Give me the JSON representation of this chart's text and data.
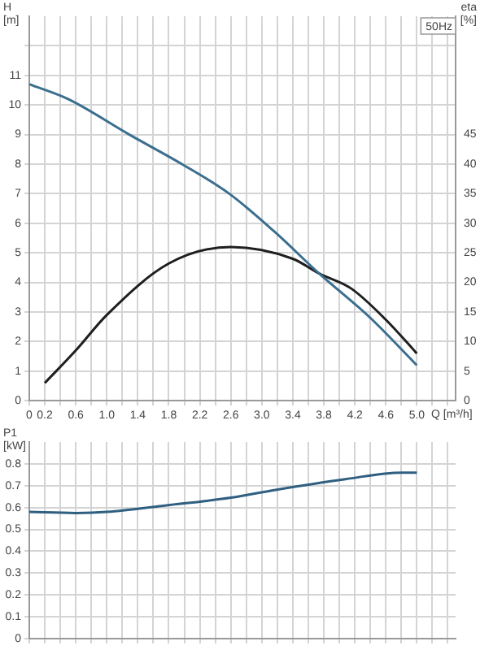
{
  "chart_data": [
    {
      "type": "line",
      "xlabel": "Q [m³/h]",
      "ylabel": "H [m]",
      "y2label": "eta [%]",
      "annotations": [
        "50Hz"
      ],
      "grid": true,
      "marker": "none",
      "xlim": [
        0,
        5.5
      ],
      "ylim": [
        0,
        13
      ],
      "y2lim": [
        0,
        65
      ],
      "xticks": [
        0,
        0.2,
        {
          "value": 0.4,
          "label": null
        },
        0.6,
        {
          "value": 0.8,
          "label": null
        },
        {
          "value": 1,
          "label": "1.0"
        },
        {
          "value": 1.2,
          "label": null
        },
        1.4,
        {
          "value": 1.6,
          "label": null
        },
        1.8,
        {
          "value": 2,
          "label": null
        },
        2.2,
        {
          "value": 2.4,
          "label": null
        },
        2.6,
        {
          "value": 2.8,
          "label": null
        },
        {
          "value": 3,
          "label": "3.0"
        },
        {
          "value": 3.2,
          "label": null
        },
        3.4,
        {
          "value": 3.6,
          "label": null
        },
        3.8,
        {
          "value": 4,
          "label": null
        },
        4.2,
        {
          "value": 4.4,
          "label": null
        },
        4.6,
        {
          "value": 4.8,
          "label": null
        },
        {
          "value": 5,
          "label": "5.0"
        },
        {
          "value": 5.2,
          "label": null
        },
        {
          "value": 5.4,
          "label": null
        }
      ],
      "yticks": [
        0,
        1,
        2,
        3,
        4,
        5,
        6,
        7,
        8,
        9,
        10,
        11,
        {
          "value": 12,
          "label": null
        }
      ],
      "y2ticks": [
        0,
        5,
        10,
        15,
        20,
        25,
        30,
        35,
        40,
        45
      ],
      "series": [
        {
          "color": "#3b6e8f",
          "x": [
            0,
            0.5,
            1.29,
            1.97,
            2.58,
            3.17,
            3.74,
            4.4,
            5.0
          ],
          "values": [
            10.7,
            10.2,
            9.0,
            8.0,
            7.0,
            5.7,
            4.3,
            2.8,
            1.2
          ]
        },
        {
          "color": "#1f1f1f",
          "axis": "y2",
          "x": [
            0.2,
            0.6,
            1.0,
            1.8,
            2.6,
            3.4,
            3.74,
            4.15,
            4.6,
            5.0
          ],
          "values": [
            3,
            8.5,
            14.5,
            23.2,
            26,
            24,
            21.5,
            19,
            13.7,
            8
          ]
        }
      ]
    },
    {
      "type": "line",
      "ylabel": "P1 [kW]",
      "grid": true,
      "marker": "none",
      "tick_labels": "y",
      "xlim": [
        0,
        5.5
      ],
      "ylim": [
        0,
        0.9
      ],
      "xticks": [
        0,
        0.2,
        0.4,
        0.6,
        0.8,
        1,
        1.2,
        1.4,
        1.6,
        1.8,
        2,
        2.2,
        2.4,
        2.6,
        2.8,
        3,
        3.2,
        3.4,
        3.6,
        3.8,
        4,
        4.2,
        4.4,
        4.6,
        4.8,
        5,
        5.2,
        5.4
      ],
      "yticks": [
        0,
        0.1,
        0.2,
        0.3,
        0.4,
        0.5,
        0.6,
        0.7,
        0.8
      ],
      "series": [
        {
          "color": "#2f5f80",
          "x": [
            0,
            0.6,
            1.0,
            1.77,
            2.6,
            3.16,
            4.08,
            4.8,
            5.0
          ],
          "values": [
            0.58,
            0.575,
            0.58,
            0.61,
            0.645,
            0.68,
            0.73,
            0.76,
            0.76
          ]
        }
      ]
    }
  ]
}
